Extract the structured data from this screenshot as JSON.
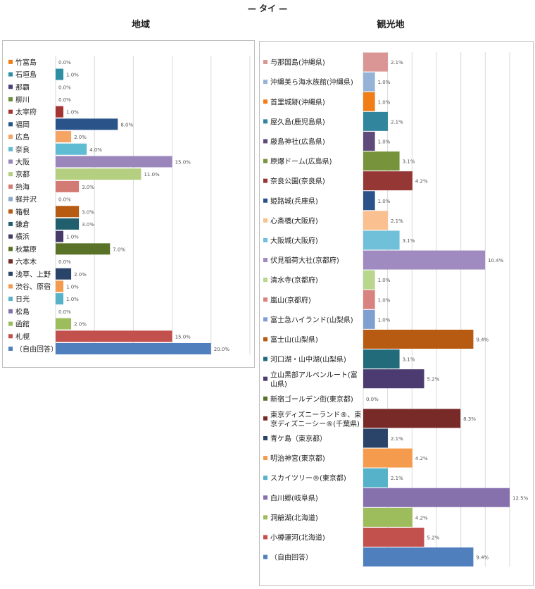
{
  "page": {
    "title": "— タイ —"
  },
  "colors": [
    "#f07d15",
    "#2e8fa3",
    "#4e3d7e",
    "#6f8e3a",
    "#a43533",
    "#2a5389",
    "#f5a464",
    "#5fbcd3",
    "#9b86bb",
    "#b4cf7f",
    "#d47a74",
    "#8aa7cf",
    "#b85b12",
    "#215e6e",
    "#463a66",
    "#5a7227",
    "#782a28",
    "#2a4469",
    "#f59b4d",
    "#55b2c8",
    "#8671ad",
    "#9dbd5d",
    "#c2504c",
    "#4f7fbd"
  ],
  "chart_data": [
    {
      "type": "bar",
      "orientation": "horizontal",
      "title": "地域",
      "categories": [
        "竹富島",
        "石垣島",
        "那覇",
        "柳川",
        "太宰府",
        "福岡",
        "広島",
        "奈良",
        "大阪",
        "京都",
        "熱海",
        "軽井沢",
        "箱根",
        "鎌倉",
        "横浜",
        "秋葉原",
        "六本木",
        "浅草、上野",
        "渋谷、原宿",
        "日光",
        "松島",
        "函館",
        "札幌",
        "（自由回答）"
      ],
      "values": [
        0.0,
        1.0,
        0.0,
        0.0,
        1.0,
        8.0,
        2.0,
        4.0,
        15.0,
        11.0,
        3.0,
        0.0,
        3.0,
        3.0,
        1.0,
        7.0,
        0.0,
        2.0,
        1.0,
        1.0,
        0.0,
        2.0,
        15.0,
        20.0
      ],
      "value_labels": [
        "0.0%",
        "1.0%",
        "0.0%",
        "0.0%",
        "1.0%",
        "8.0%",
        "2.0%",
        "4.0%",
        "15.0%",
        "11.0%",
        "3.0%",
        "0.0%",
        "3.0%",
        "3.0%",
        "1.0%",
        "7.0%",
        "0.0%",
        "2.0%",
        "1.0%",
        "1.0%",
        "0.0%",
        "2.0%",
        "15.0%",
        "20.0%"
      ],
      "xlim": [
        0,
        25
      ],
      "grid": true,
      "legend": "left"
    },
    {
      "type": "bar",
      "orientation": "horizontal",
      "title": "観光地",
      "categories": [
        "与那国島(沖縄県)",
        "沖縄美ら海水族館(沖縄県)",
        "首里城跡(沖縄県)",
        "屋久島(鹿児島県)",
        "厳島神社(広島県)",
        "原爆ドーム(広島県)",
        "奈良公園(奈良県)",
        "姫路城(兵庫県)",
        "心斎橋(大阪府)",
        "大阪城(大阪府)",
        "伏見稲荷大社(京都府)",
        "清水寺(京都府)",
        "嵐山(京都府)",
        "富士急ハイランド(山梨県)",
        "富士山(山梨県)",
        "河口湖・山中湖(山梨県)",
        "立山黒部アルペンルート(富山県)",
        "新宿ゴールデン街(東京都)",
        "東京ディズニーランド®、東京ディズニーシー®(千葉県)",
        "青ケ島（東京都）",
        "明治神宮(東京都)",
        "スカイツリー®(東京都)",
        "白川郷(岐阜県)",
        "洞爺湖(北海道)",
        "小樽運河(北海道)",
        "（自由回答）"
      ],
      "values": [
        2.1,
        1.0,
        1.0,
        2.1,
        1.0,
        3.1,
        4.2,
        1.0,
        2.1,
        3.1,
        10.4,
        1.0,
        1.0,
        1.0,
        9.4,
        3.1,
        5.2,
        0.0,
        8.3,
        2.1,
        4.2,
        2.1,
        12.5,
        4.2,
        5.2,
        9.4
      ],
      "value_labels": [
        "2.1%",
        "1.0%",
        "1.0%",
        "2.1%",
        "1.0%",
        "3.1%",
        "4.2%",
        "1.0%",
        "2.1%",
        "3.1%",
        "10.4%",
        "1.0%",
        "1.0%",
        "1.0%",
        "9.4%",
        "3.1%",
        "5.2%",
        "0.0%",
        "8.3%",
        "2.1%",
        "4.2%",
        "2.1%",
        "12.5%",
        "4.2%",
        "5.2%",
        "9.4%"
      ],
      "colors": [
        "#d99694",
        "#95b3d7",
        "#f07d15",
        "#31859c",
        "#604a7b",
        "#77933c",
        "#953735",
        "#2a5389",
        "#fac090",
        "#6fc0d8",
        "#a08bc1",
        "#b8d68c",
        "#d8837f",
        "#7f9fd0",
        "#b85b12",
        "#226b7a",
        "#4b3b70",
        "#5a7227",
        "#782a28",
        "#2a4469",
        "#f59b4d",
        "#55b2c8",
        "#8671ad",
        "#9dbd5d",
        "#c2504c",
        "#4f7fbd"
      ],
      "xlim": [
        0,
        12.5
      ],
      "grid": true,
      "legend": "left"
    }
  ]
}
